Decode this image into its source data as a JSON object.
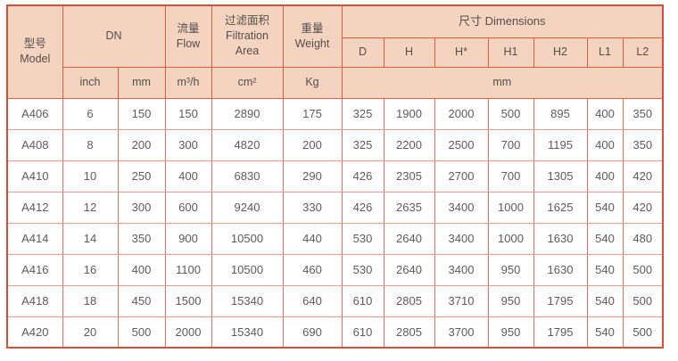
{
  "table": {
    "header": {
      "model": "型号\nModel",
      "dn": "DN",
      "flow": "流量\nFlow",
      "filtration_area": "过滤面积\nFiltration\nArea",
      "weight": "重量\nWeight",
      "dimensions": "尺寸 Dimensions",
      "dim_cols": [
        "D",
        "H",
        "H*",
        "H1",
        "H2",
        "L1",
        "L2"
      ],
      "units": {
        "dn_inch": "inch",
        "dn_mm": "mm",
        "flow": "m³/h",
        "filtration_area": "cm²",
        "weight": "Kg",
        "dimensions": "mm"
      }
    },
    "rows": [
      [
        "A406",
        "6",
        "150",
        "150",
        "2890",
        "175",
        "325",
        "1900",
        "2000",
        "500",
        "895",
        "400",
        "350"
      ],
      [
        "A408",
        "8",
        "200",
        "300",
        "4820",
        "200",
        "325",
        "2200",
        "2500",
        "700",
        "1195",
        "400",
        "350"
      ],
      [
        "A410",
        "10",
        "250",
        "400",
        "6830",
        "290",
        "426",
        "2305",
        "2700",
        "700",
        "1305",
        "400",
        "420"
      ],
      [
        "A412",
        "12",
        "300",
        "600",
        "9240",
        "330",
        "426",
        "2635",
        "3400",
        "1000",
        "1625",
        "540",
        "420"
      ],
      [
        "A414",
        "14",
        "350",
        "900",
        "10500",
        "440",
        "530",
        "2640",
        "3400",
        "1000",
        "1630",
        "540",
        "480"
      ],
      [
        "A416",
        "16",
        "400",
        "1100",
        "10500",
        "460",
        "530",
        "2640",
        "3400",
        "950",
        "1630",
        "540",
        "500"
      ],
      [
        "A418",
        "18",
        "450",
        "1500",
        "15340",
        "640",
        "610",
        "2805",
        "3710",
        "950",
        "1795",
        "540",
        "500"
      ],
      [
        "A420",
        "20",
        "500",
        "2000",
        "15340",
        "690",
        "610",
        "2805",
        "3700",
        "950",
        "1795",
        "540",
        "500"
      ]
    ]
  },
  "colors": {
    "header_bg": "#f5d3c1",
    "header_border": "#dd6038",
    "outer_border": "#d5503a",
    "data_border_horizontal": "#f29a8e",
    "data_border_vertical": "#e96d5e",
    "text": "#5b5b5b"
  }
}
